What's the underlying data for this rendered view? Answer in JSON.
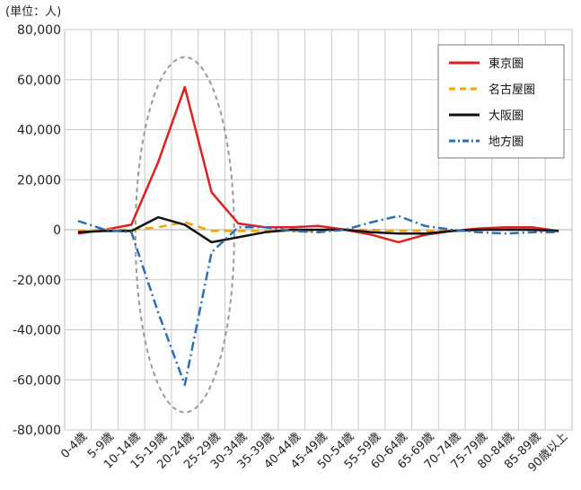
{
  "unit_label": "(単位：人)",
  "chart_data": {
    "type": "line",
    "title": "",
    "xlabel": "",
    "ylabel": "",
    "ylim": [
      -80000,
      80000
    ],
    "yticks": [
      80000,
      60000,
      40000,
      20000,
      0,
      -20000,
      -40000,
      -60000,
      -80000
    ],
    "ytick_labels": [
      "80,000",
      "60,000",
      "40,000",
      "20,000",
      "0",
      "-20,000",
      "-40,000",
      "-60,000",
      "-80,000"
    ],
    "grid": true,
    "legend_position": "top-right",
    "categories": [
      "0-4歳",
      "5-9歳",
      "10-14歳",
      "15-19歳",
      "20-24歳",
      "25-29歳",
      "30-34歳",
      "35-39歳",
      "40-44歳",
      "45-49歳",
      "50-54歳",
      "55-59歳",
      "60-64歳",
      "65-69歳",
      "70-74歳",
      "75-79歳",
      "80-84歳",
      "85-89歳",
      "90歳以上"
    ],
    "highlighted_categories": [
      "15-19歳",
      "20-24歳",
      "25-29歳"
    ],
    "highlight_color": "#e8402a",
    "series": [
      {
        "name": "東京圏",
        "color": "#e02020",
        "style": "solid",
        "values": [
          -1500,
          0,
          2000,
          27000,
          57000,
          15000,
          2500,
          1000,
          1000,
          1500,
          0,
          -2000,
          -5000,
          -2000,
          -500,
          500,
          1000,
          1000,
          -500
        ]
      },
      {
        "name": "名古屋圏",
        "color": "#f0a800",
        "style": "dash",
        "values": [
          -500,
          0,
          0,
          1000,
          3000,
          -500,
          -500,
          -500,
          -500,
          -500,
          0,
          0,
          -500,
          -500,
          -500,
          0,
          0,
          0,
          -500
        ]
      },
      {
        "name": "大阪圏",
        "color": "#111111",
        "style": "solid",
        "values": [
          -1000,
          -500,
          -500,
          5000,
          2000,
          -5000,
          -3000,
          -1000,
          0,
          0,
          0,
          -1000,
          -1500,
          -1500,
          -500,
          0,
          0,
          0,
          -500
        ]
      },
      {
        "name": "地方圏",
        "color": "#2a6fb8",
        "style": "dashdot",
        "values": [
          3500,
          0,
          -1000,
          -33000,
          -62000,
          -9000,
          1000,
          1000,
          -500,
          -1000,
          0,
          3000,
          5500,
          1500,
          0,
          -1000,
          -1500,
          -1000,
          -1000
        ]
      }
    ]
  }
}
